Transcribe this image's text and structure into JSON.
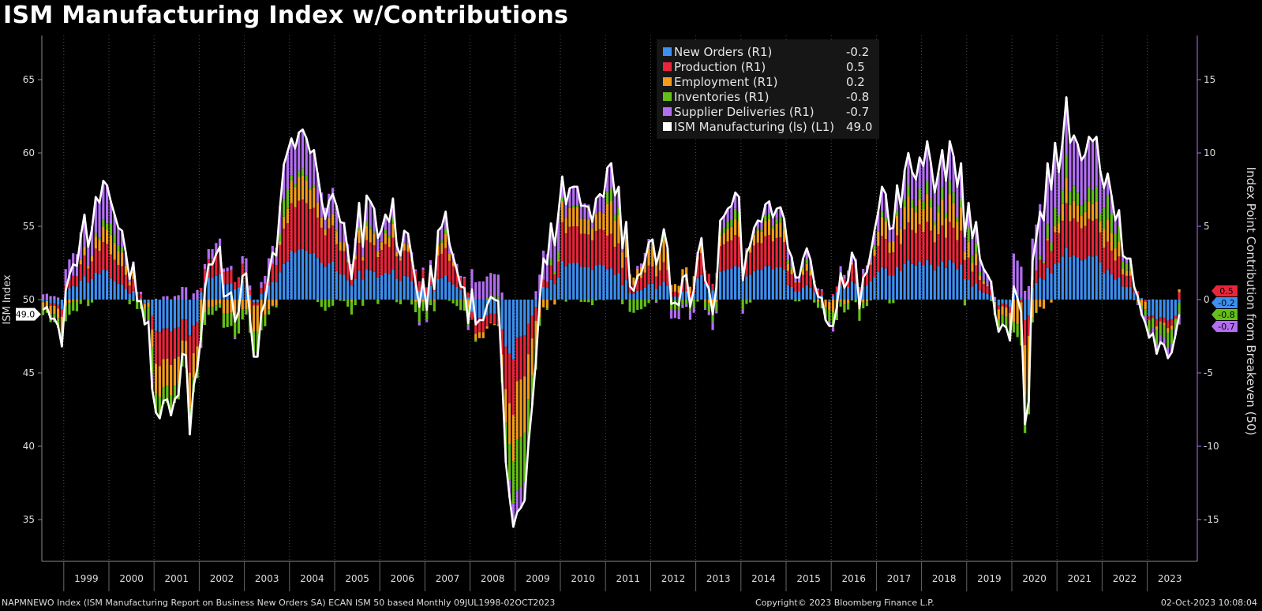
{
  "title": "ISM Manufacturing Index w/Contributions",
  "footer": {
    "source": "NAPMNEWO Index (ISM Manufacturing Report on Business New Orders SA) ECAN ISM 50 based  Monthly 09JUL1998-02OCT2023",
    "copyright": "Copyright© 2023 Bloomberg Finance L.P.",
    "timestamp": "02-Oct-2023 10:08:04"
  },
  "legend": [
    {
      "name": "New Orders (R1)",
      "value": "-0.2",
      "color": "#3d8ff0"
    },
    {
      "name": "Production (R1)",
      "value": "0.5",
      "color": "#e8253a"
    },
    {
      "name": "Employment (R1)",
      "value": "0.2",
      "color": "#f39c1c"
    },
    {
      "name": "Inventories (R1)",
      "value": "-0.8",
      "color": "#64c018"
    },
    {
      "name": "Supplier Deliveries (R1)",
      "value": "-0.7",
      "color": "#b36ef2"
    },
    {
      "name": "ISM Manufacturing (ls) (L1)",
      "value": "49.0",
      "color": "#ffffff"
    }
  ],
  "chart_data": {
    "type": "bar+line",
    "title": "ISM Manufacturing Index w/Contributions",
    "ylabel_left": "ISM Index",
    "ylabel_right": "Index Point Contribution from Breakeven (50)",
    "ylim_left": [
      32,
      68
    ],
    "ylim_right": [
      -18,
      18
    ],
    "yticks_left": [
      "35",
      "40",
      "45",
      "50",
      "55",
      "60",
      "65"
    ],
    "yticks_right": [
      "-15",
      "-10",
      "-5",
      "0",
      "5",
      "10",
      "15"
    ],
    "x_start": "1998-07",
    "x_end": "2023-09",
    "frequency": "monthly",
    "xticks": [
      "1999",
      "2000",
      "2001",
      "2002",
      "2003",
      "2004",
      "2005",
      "2006",
      "2007",
      "2008",
      "2009",
      "2010",
      "2011",
      "2012",
      "2013",
      "2014",
      "2015",
      "2016",
      "2017",
      "2018",
      "2019",
      "2020",
      "2021",
      "2022",
      "2023"
    ],
    "grid": "vertical dotted at year boundaries",
    "legend_position": "top-center",
    "last_value_tags": {
      "left": "49.0",
      "right": [
        "0.5",
        "-0.2",
        "-0.8",
        "-0.7"
      ]
    },
    "ism_monthly": [
      49.3,
      49.5,
      48.7,
      48.7,
      48.2,
      46.8,
      50.6,
      51.7,
      52.4,
      52.3,
      54.3,
      55.8,
      53.6,
      54.8,
      57.0,
      56.6,
      58.1,
      57.8,
      56.7,
      55.8,
      54.9,
      54.7,
      53.2,
      51.4,
      52.5,
      49.9,
      49.9,
      48.3,
      48.5,
      43.9,
      42.3,
      41.9,
      43.1,
      43.2,
      42.1,
      43.2,
      43.5,
      46.3,
      46.2,
      40.8,
      44.1,
      45.3,
      47.5,
      50.7,
      52.4,
      52.4,
      53.1,
      53.6,
      50.2,
      50.3,
      50.5,
      48.5,
      49.2,
      51.6,
      51.8,
      48.7,
      46.1,
      46.1,
      49.1,
      49.8,
      51.8,
      53.2,
      53.0,
      56.4,
      59.2,
      60.1,
      61.0,
      60.3,
      61.4,
      61.6,
      61.0,
      60.0,
      60.2,
      58.5,
      56.8,
      55.5,
      56.7,
      57.2,
      56.4,
      55.3,
      55.2,
      53.3,
      51.4,
      53.8,
      56.6,
      53.6,
      57.1,
      56.7,
      56.2,
      54.2,
      54.8,
      55.8,
      55.3,
      56.9,
      53.7,
      53.0,
      54.7,
      54.5,
      52.9,
      51.2,
      49.5,
      51.4,
      49.3,
      52.3,
      50.7,
      54.7,
      55.0,
      56.0,
      53.8,
      52.9,
      52.0,
      50.9,
      50.8,
      48.4,
      50.7,
      48.3,
      48.6,
      48.6,
      49.6,
      50.2,
      50.0,
      49.9,
      44.8,
      38.9,
      36.5,
      34.5,
      35.5,
      35.8,
      36.3,
      40.1,
      42.8,
      45.8,
      49.9,
      52.8,
      52.4,
      55.2,
      53.7,
      55.9,
      58.4,
      56.5,
      57.6,
      57.7,
      57.7,
      56.4,
      56.4,
      56.3,
      55.3,
      56.9,
      57.2,
      57.0,
      59.0,
      59.3,
      57.1,
      57.7,
      53.5,
      55.3,
      50.9,
      50.6,
      51.6,
      51.8,
      52.7,
      53.9,
      54.1,
      52.4,
      53.4,
      54.8,
      53.5,
      49.7,
      49.8,
      49.6,
      51.5,
      51.7,
      49.5,
      50.7,
      53.1,
      54.2,
      51.3,
      50.7,
      49.0,
      50.9,
      55.4,
      55.7,
      56.2,
      56.4,
      57.3,
      57.0,
      51.3,
      53.2,
      53.7,
      54.9,
      55.4,
      55.3,
      56.5,
      56.7,
      55.6,
      56.2,
      56.3,
      55.5,
      53.5,
      52.9,
      51.5,
      51.5,
      52.8,
      53.5,
      52.7,
      51.1,
      50.2,
      50.1,
      48.6,
      48.2,
      48.2,
      49.5,
      51.8,
      50.8,
      51.3,
      53.2,
      52.6,
      49.4,
      51.5,
      51.9,
      53.2,
      54.7,
      56.0,
      57.7,
      57.2,
      54.8,
      54.9,
      57.8,
      56.3,
      58.8,
      60.0,
      58.7,
      58.2,
      59.7,
      59.1,
      60.8,
      59.3,
      57.3,
      58.7,
      60.2,
      58.1,
      60.8,
      59.8,
      57.7,
      59.3,
      54.3,
      56.6,
      54.2,
      55.3,
      52.8,
      52.1,
      51.7,
      51.2,
      49.1,
      47.8,
      48.3,
      48.1,
      47.2,
      50.9,
      50.1,
      49.1,
      41.5,
      43.1,
      52.6,
      54.2,
      56.0,
      55.4,
      59.3,
      57.5,
      60.7,
      58.7,
      60.8,
      63.8,
      60.7,
      61.2,
      60.6,
      59.5,
      59.9,
      61.1,
      60.8,
      61.1,
      58.8,
      57.6,
      58.6,
      57.1,
      55.4,
      56.1,
      53.0,
      52.8,
      52.8,
      50.9,
      50.2,
      49.0,
      48.4,
      47.4,
      47.7,
      46.3,
      47.1,
      46.9,
      46.0,
      46.4,
      47.6,
      49.0
    ],
    "series": [
      {
        "name": "New Orders (R1)",
        "annual_avg_contribution": [
          -0.3,
          1.3,
          0.3,
          -2.0,
          1.2,
          1.0,
          3.0,
          1.6,
          1.4,
          0.9,
          -1.8,
          -0.4,
          2.5,
          1.3,
          0.6,
          1.5,
          2.0,
          0.6,
          0.9,
          2.2,
          2.3,
          0.3,
          0.8,
          2.9,
          1.0,
          -1.2
        ],
        "last": -0.2
      },
      {
        "name": "Production (R1)",
        "annual_avg_contribution": [
          -0.2,
          1.1,
          0.5,
          -2.1,
          1.0,
          1.0,
          2.9,
          1.5,
          1.5,
          1.1,
          -1.5,
          -0.8,
          2.5,
          1.5,
          0.7,
          1.3,
          1.8,
          0.6,
          0.8,
          2.1,
          2.2,
          0.4,
          0.5,
          2.4,
          0.9,
          -0.3
        ],
        "last": 0.5
      },
      {
        "name": "Employment (R1)",
        "annual_avg_contribution": [
          -0.6,
          0.3,
          0.2,
          -1.9,
          -0.8,
          -0.6,
          1.2,
          0.5,
          0.3,
          0.2,
          -0.9,
          -1.8,
          1.3,
          1.4,
          0.9,
          0.3,
          0.8,
          0.1,
          -0.2,
          1.3,
          1.5,
          0.0,
          -1.2,
          1.1,
          0.5,
          -0.1
        ],
        "last": 0.2
      },
      {
        "name": "Inventories (R1)",
        "annual_avg_contribution": [
          -0.6,
          -0.3,
          -0.4,
          -1.2,
          -0.8,
          -0.3,
          0.0,
          -0.2,
          -0.2,
          -0.4,
          -0.6,
          -1.3,
          0.1,
          0.0,
          -0.3,
          -0.1,
          0.1,
          -0.1,
          -0.4,
          0.3,
          0.5,
          -0.1,
          -0.4,
          0.9,
          0.6,
          -0.8
        ],
        "last": -0.8
      },
      {
        "name": "Supplier Deliveries (R1)",
        "annual_avg_contribution": [
          0.2,
          1.9,
          0.4,
          0.2,
          0.4,
          1.0,
          2.2,
          1.3,
          0.6,
          0.4,
          0.7,
          0.7,
          1.3,
          0.9,
          -0.2,
          0.3,
          0.5,
          0.4,
          0.4,
          1.7,
          2.3,
          0.6,
          2.8,
          3.3,
          0.5,
          -0.5
        ],
        "last": -0.7
      }
    ]
  }
}
